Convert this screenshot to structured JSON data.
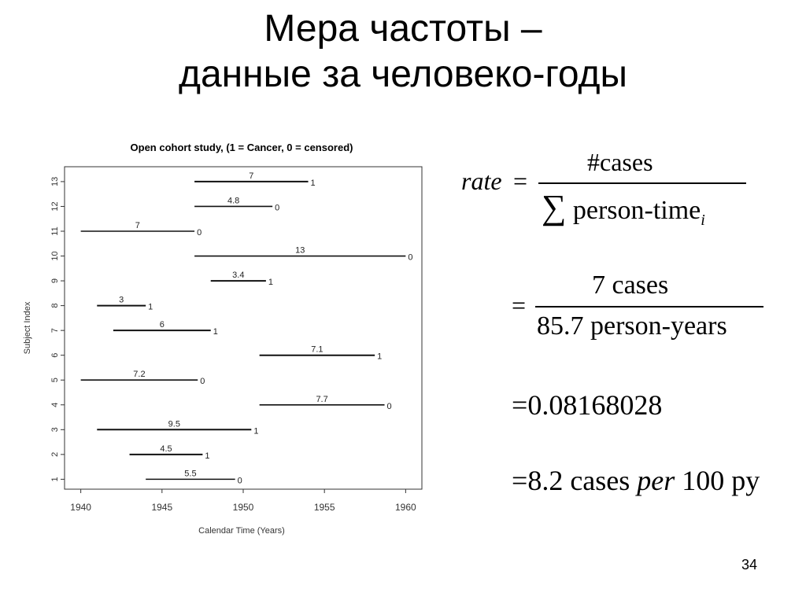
{
  "slide": {
    "title_line1": "Мера частоты –",
    "title_line2": "данные за человеко-годы",
    "page_number": "34"
  },
  "formulas": {
    "rate_lhs": "rate",
    "eq": "=",
    "cases_num": "#cases",
    "sum_symbol": "∑",
    "person_time": "person-time",
    "sub_i": "i",
    "num2": "7 cases",
    "den2": "85.7 person-years",
    "line3": "0.08168028",
    "line4_a": "8.2 cases ",
    "line4_per": "per",
    "line4_b": " 100 py"
  },
  "chart_data": {
    "type": "timeline",
    "title": "Open cohort study, (1 = Cancer, 0 = censored)",
    "xlabel": "Calendar Time (Years)",
    "ylabel": "Subject Index",
    "xlim": [
      1939,
      1961
    ],
    "ylim": [
      0.6,
      13.6
    ],
    "xticks": [
      1940,
      1945,
      1950,
      1955,
      1960
    ],
    "yticks": [
      1,
      2,
      3,
      4,
      5,
      6,
      7,
      8,
      9,
      10,
      11,
      12,
      13
    ],
    "subjects": [
      {
        "index": 1,
        "start": 1944,
        "end": 1949.5,
        "label": "5.5",
        "status": "0"
      },
      {
        "index": 2,
        "start": 1943,
        "end": 1947.5,
        "label": "4.5",
        "status": "1"
      },
      {
        "index": 3,
        "start": 1941,
        "end": 1950.5,
        "label": "9.5",
        "status": "1"
      },
      {
        "index": 4,
        "start": 1951,
        "end": 1958.7,
        "label": "7.7",
        "status": "0"
      },
      {
        "index": 5,
        "start": 1940,
        "end": 1947.2,
        "label": "7.2",
        "status": "0"
      },
      {
        "index": 6,
        "start": 1951,
        "end": 1958.1,
        "label": "7.1",
        "status": "1"
      },
      {
        "index": 7,
        "start": 1942,
        "end": 1948,
        "label": "6",
        "status": "1"
      },
      {
        "index": 8,
        "start": 1941,
        "end": 1944,
        "label": "3",
        "status": "1"
      },
      {
        "index": 9,
        "start": 1948,
        "end": 1951.4,
        "label": "3.4",
        "status": "1"
      },
      {
        "index": 10,
        "start": 1947,
        "end": 1960,
        "label": "13",
        "status": "0"
      },
      {
        "index": 11,
        "start": 1940,
        "end": 1947,
        "label": "7",
        "status": "0"
      },
      {
        "index": 12,
        "start": 1947,
        "end": 1951.8,
        "label": "4.8",
        "status": "0"
      },
      {
        "index": 13,
        "start": 1947,
        "end": 1954,
        "label": "7",
        "status": "1"
      }
    ]
  }
}
